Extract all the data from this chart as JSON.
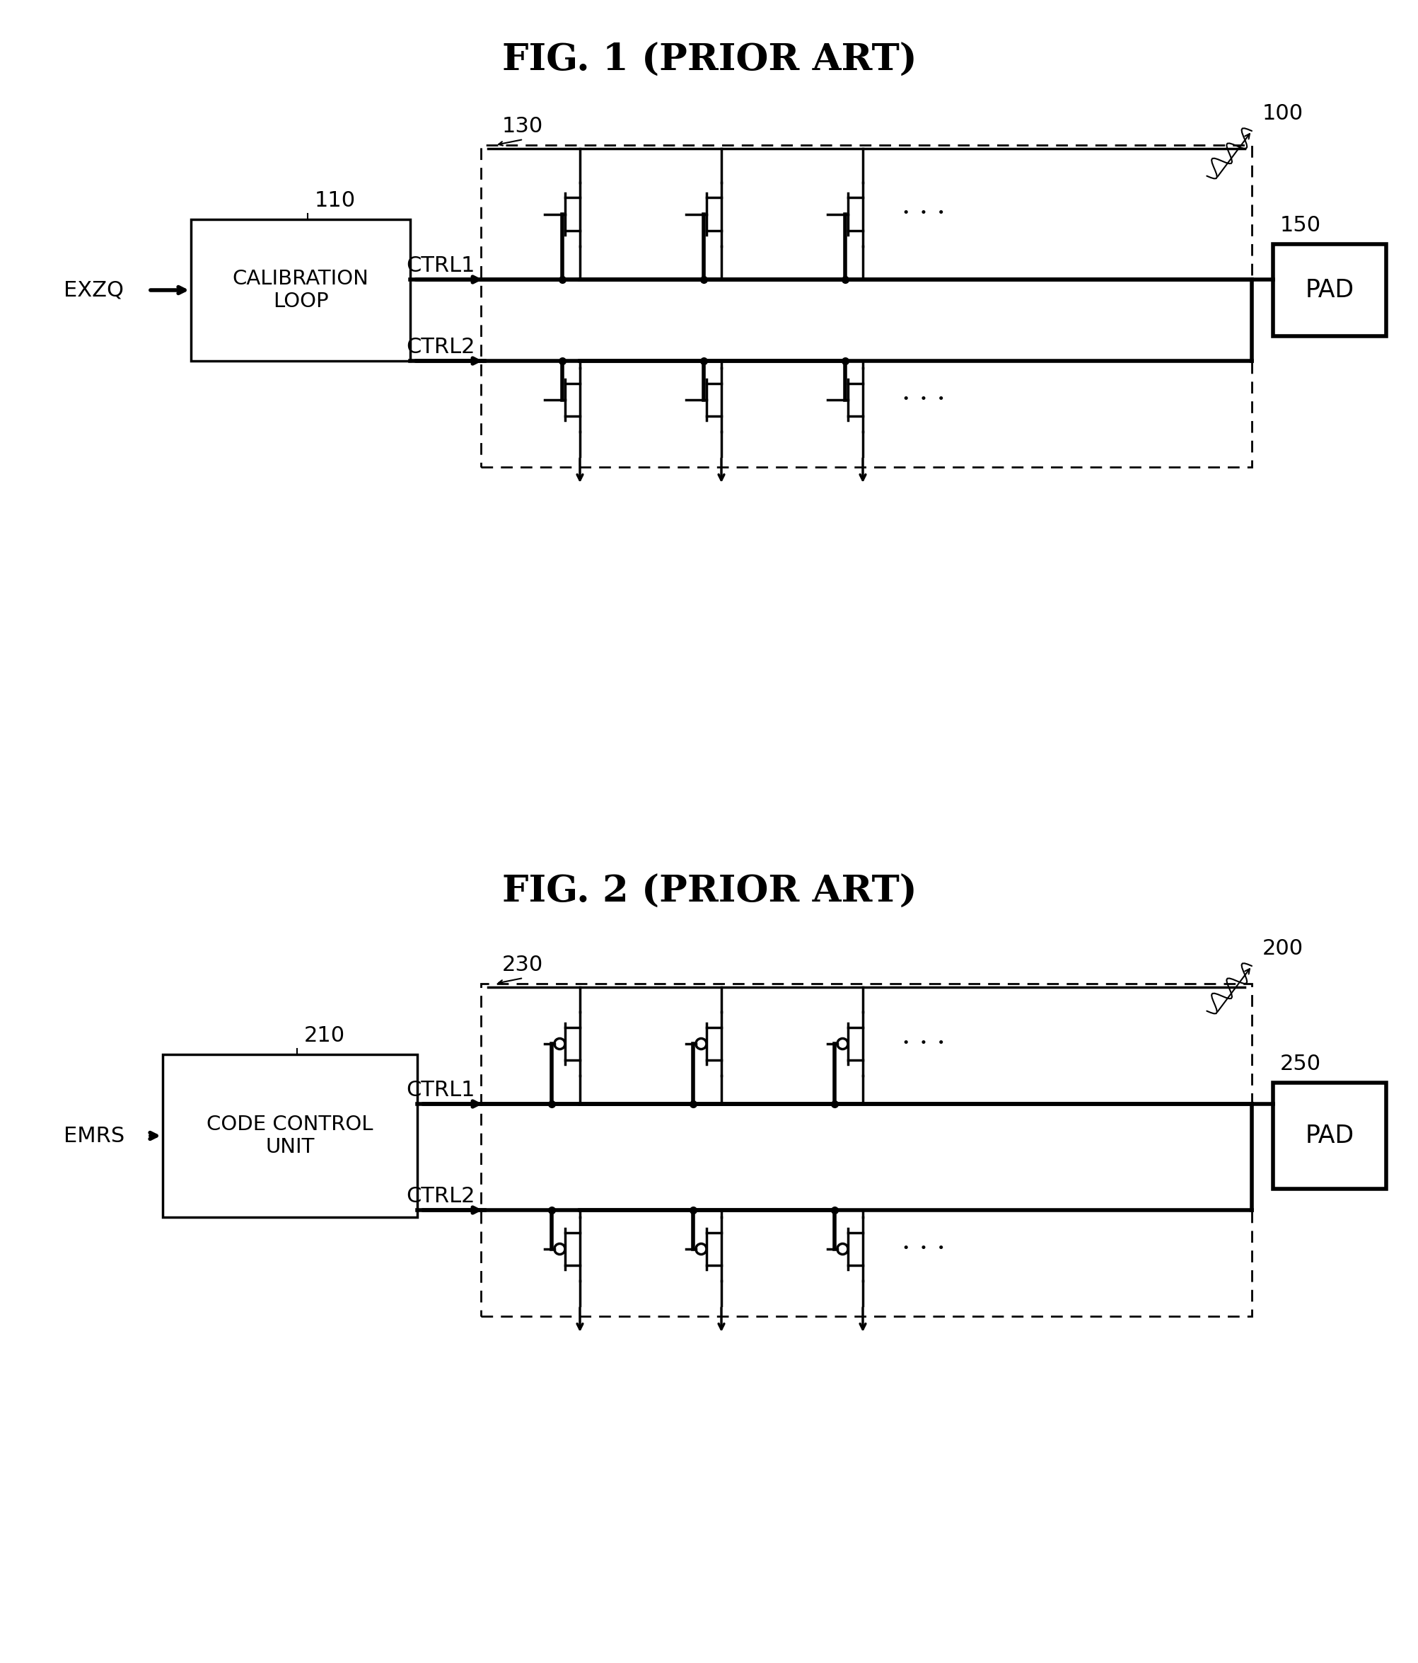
{
  "fig1_title": "FIG. 1 (PRIOR ART)",
  "fig2_title": "FIG. 2 (PRIOR ART)",
  "background_color": "#ffffff",
  "fig1_label_100": "100",
  "fig1_label_110": "110",
  "fig1_label_130": "130",
  "fig1_label_150": "150",
  "fig1_ctrl1": "CTRL1",
  "fig1_ctrl2": "CTRL2",
  "fig1_exzq": "EXZQ",
  "fig1_box1_text": "CALIBRATION\nLOOP",
  "fig1_pad_text": "PAD",
  "fig2_label_200": "200",
  "fig2_label_210": "210",
  "fig2_label_230": "230",
  "fig2_label_250": "250",
  "fig2_ctrl1": "CTRL1",
  "fig2_ctrl2": "CTRL2",
  "fig2_emrs": "EMRS",
  "fig2_box1_text": "CODE CONTROL\nUNIT",
  "fig2_pad_text": "PAD",
  "dots": "· · ·"
}
